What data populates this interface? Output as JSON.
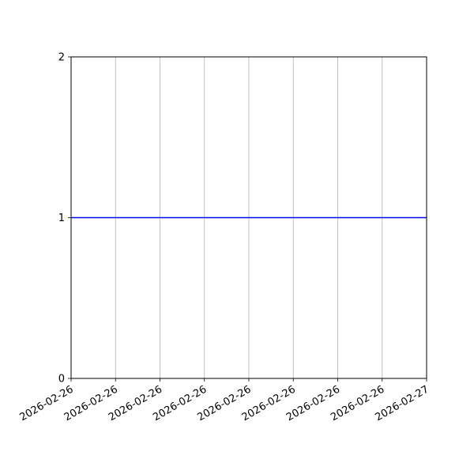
{
  "chart_data": {
    "type": "line",
    "title": "",
    "xlabel": "",
    "ylabel": "",
    "x_axis_type": "datetime",
    "xlim": [
      "2026-02-26 00:00",
      "2026-02-27 00:00"
    ],
    "ylim": [
      0,
      2
    ],
    "x_ticks": [
      "2026-02-26 00:00",
      "2026-02-26 03:00",
      "2026-02-26 06:00",
      "2026-02-26 09:00",
      "2026-02-26 12:00",
      "2026-02-26 15:00",
      "2026-02-26 18:00",
      "2026-02-26 21:00",
      "2026-02-27 00:00"
    ],
    "x_tick_labels": [
      "2026-02-26",
      "2026-02-26",
      "2026-02-26",
      "2026-02-26",
      "2026-02-26",
      "2026-02-26",
      "2026-02-26",
      "2026-02-26",
      "2026-02-27"
    ],
    "y_ticks": [
      0,
      1,
      2
    ],
    "y_tick_labels": [
      "0",
      "1",
      "2"
    ],
    "grid": {
      "x": true,
      "y": false
    },
    "series": [
      {
        "x": [
          "2026-02-26 00:00",
          "2026-02-27 00:00"
        ],
        "y": [
          1,
          1
        ],
        "color": "#0000ff"
      }
    ]
  }
}
